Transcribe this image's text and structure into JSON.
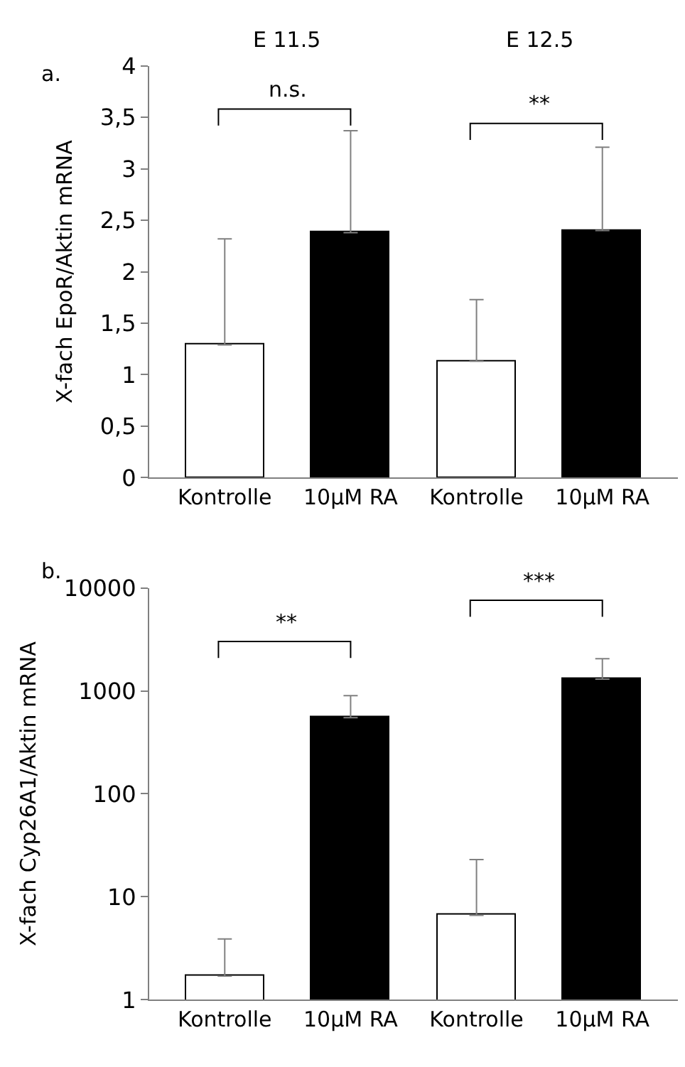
{
  "chart_data": [
    {
      "type": "bar",
      "ylabel": "X-fach EpoR/Aktin mRNA",
      "categories": [
        "Kontrolle",
        "10µM RA",
        "Kontrolle",
        "10µM RA"
      ],
      "values": [
        1.29,
        2.38,
        1.13,
        2.4
      ],
      "colors": [
        "#ffffff",
        "#000000",
        "#ffffff",
        "#000000"
      ],
      "errors": [
        [
          1.29,
          2.32
        ],
        [
          2.38,
          3.37
        ],
        [
          1.13,
          1.73
        ],
        [
          2.4,
          3.21
        ]
      ],
      "ylim": [
        0,
        4
      ],
      "yticks": [
        0,
        {
          "value": 0.5,
          "label": "0,5"
        },
        1,
        {
          "value": 1.5,
          "label": "1,5"
        },
        2,
        {
          "value": 2.5,
          "label": "2,5"
        },
        3,
        {
          "value": 3.5,
          "label": "3,5"
        },
        4
      ],
      "annotations": [
        "a.",
        "E 11.5",
        "E 12.5",
        "n.s.",
        "**"
      ]
    },
    {
      "type": "bar",
      "ylabel": "X-fach Cyp26A1/Aktin mRNA",
      "categories": [
        "Kontrolle",
        "10µM RA",
        "Kontrolle",
        "10µM RA"
      ],
      "values": [
        1.7,
        550,
        6.6,
        1300
      ],
      "colors": [
        "#ffffff",
        "#000000",
        "#ffffff",
        "#000000"
      ],
      "errors": [
        [
          1.7,
          3.9
        ],
        [
          550,
          900
        ],
        [
          6.6,
          23
        ],
        [
          1300,
          2050
        ]
      ],
      "log": true,
      "ylim": [
        1,
        10000
      ],
      "yticks": [
        1,
        10,
        100,
        1000,
        10000
      ],
      "annotations": [
        "b.",
        "**",
        "***"
      ]
    }
  ]
}
